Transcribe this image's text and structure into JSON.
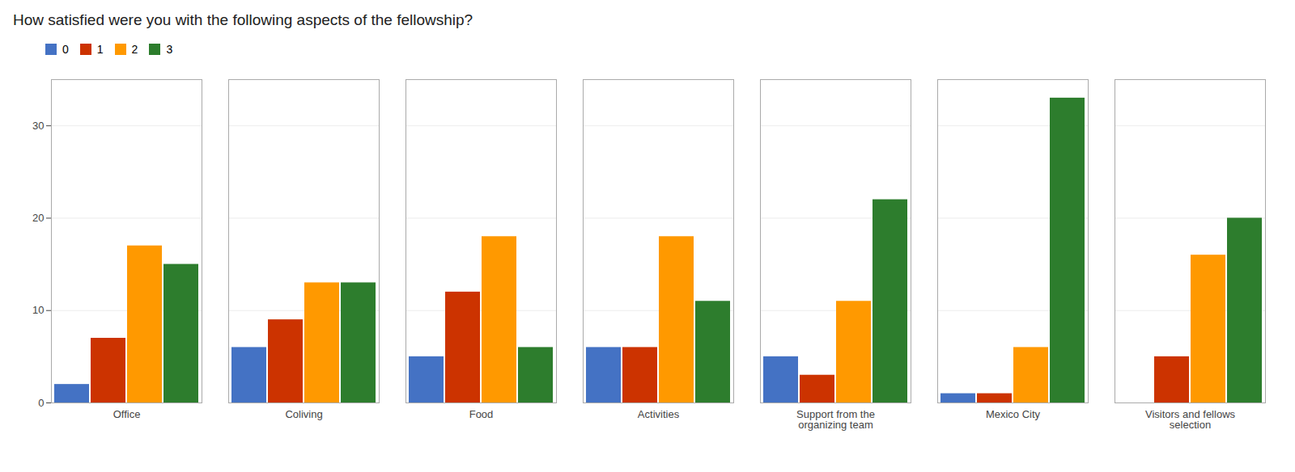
{
  "chart_data": {
    "type": "bar",
    "title": "How satisfied were you with the following aspects of the fellowship?",
    "categories": [
      "Office",
      "Coliving",
      "Food",
      "Activities",
      "Support from the\norganizing team",
      "Mexico City",
      "Visitors and fellows\nselection"
    ],
    "series": [
      {
        "name": "0",
        "color": "#4472c4",
        "values": [
          2,
          6,
          5,
          6,
          5,
          1,
          0
        ]
      },
      {
        "name": "1",
        "color": "#cc3300",
        "values": [
          7,
          9,
          12,
          6,
          3,
          1,
          5
        ]
      },
      {
        "name": "2",
        "color": "#ff9900",
        "values": [
          17,
          13,
          18,
          18,
          11,
          6,
          16
        ]
      },
      {
        "name": "3",
        "color": "#2d7d2d",
        "values": [
          15,
          13,
          6,
          11,
          22,
          33,
          20
        ]
      }
    ],
    "ylim": [
      0,
      35
    ],
    "yticks": [
      0,
      10,
      20,
      30
    ],
    "grid": true,
    "legend": "top left"
  }
}
